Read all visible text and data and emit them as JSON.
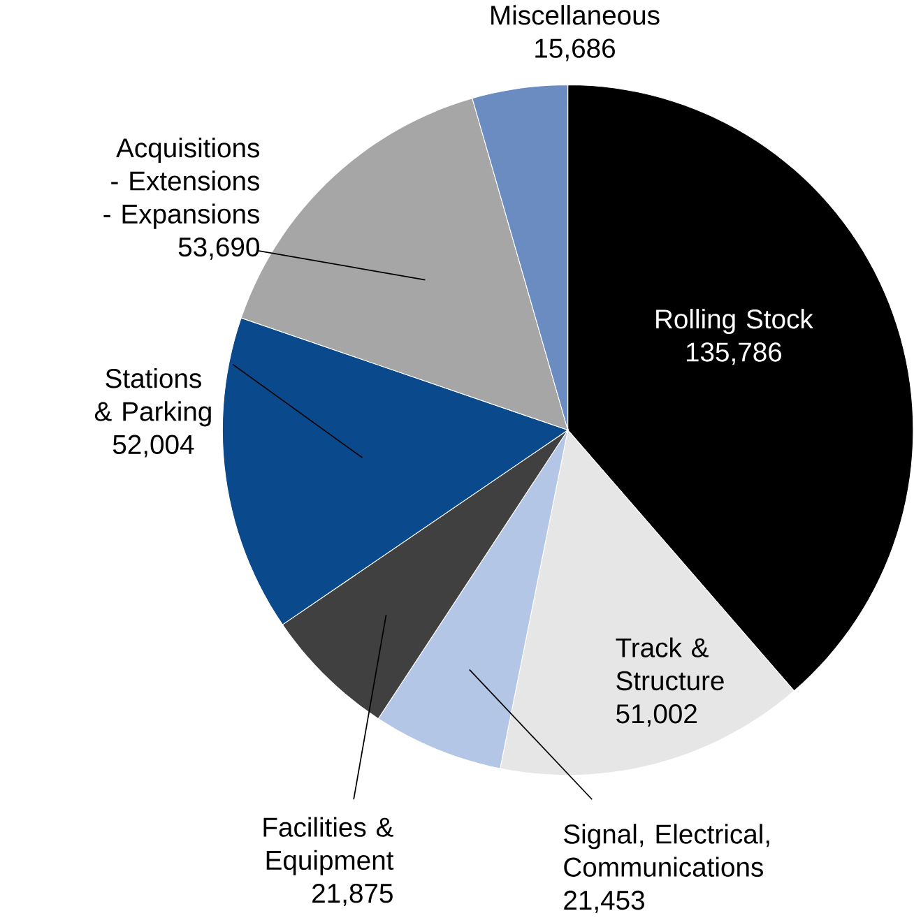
{
  "chart_data": {
    "type": "pie",
    "categories": [
      "Rolling Stock",
      "Track & Structure",
      "Signal, Electrical, Communications",
      "Facilities & Equipment",
      "Stations & Parking",
      "Acquisitions - Extensions - Expansions",
      "Miscellaneous"
    ],
    "values": [
      135786,
      51002,
      21453,
      21875,
      52004,
      53690,
      15686
    ],
    "value_labels": [
      "135,786",
      "51,002",
      "21,453",
      "21,875",
      "52,004",
      "53,690",
      "15,686"
    ],
    "colors": [
      "#000000",
      "#e6e6e6",
      "#b4c6e6",
      "#404040",
      "#0a4a8c",
      "#a6a6a6",
      "#6a8cc0"
    ]
  }
}
